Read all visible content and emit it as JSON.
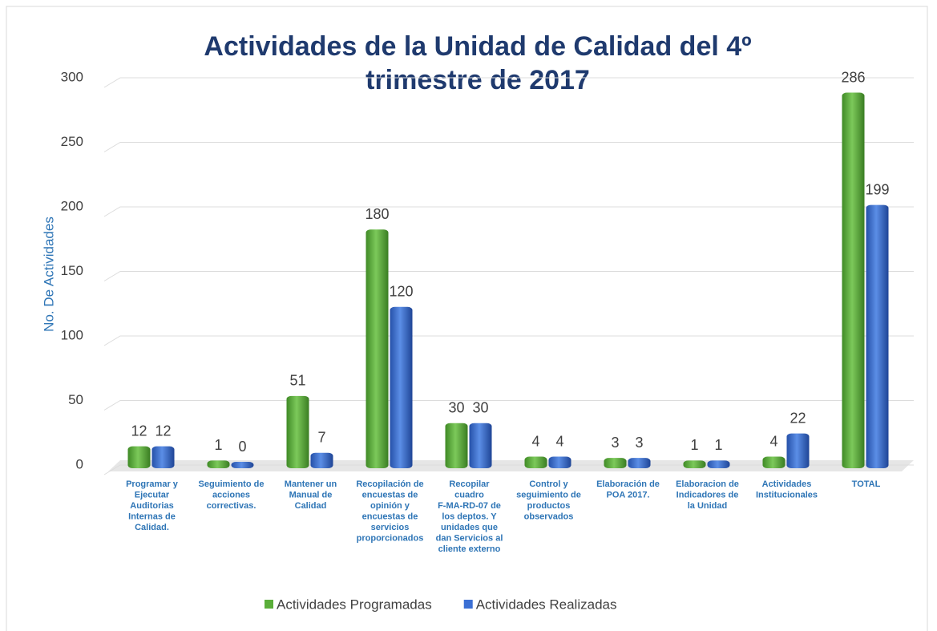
{
  "chart_data": {
    "type": "bar",
    "title": "Actividades de la Unidad de Calidad del 4º trimestre de 2017",
    "y_label": "No. De Actividades",
    "categories": [
      "Programar y Ejecutar Auditorias Internas de Calidad.",
      "Seguimiento de acciones correctivas.",
      "Mantener un Manual de Calidad",
      "Recopilación de encuestas de opinión y encuestas de servicios proporcionados",
      "Recopilar cuadro F-MA-RD-07 de los deptos. Y unidades que dan Servicios al cliente externo",
      "Control y seguimiento de productos observados",
      "Elaboración de POA 2017.",
      "Elaboracion de Indicadores de la Unidad",
      "Actividades Institucionales",
      "TOTAL"
    ],
    "series": [
      {
        "name": "Actividades Programadas",
        "color": "#5aae3a",
        "values": [
          12,
          1,
          51,
          180,
          30,
          4,
          3,
          1,
          4,
          286
        ]
      },
      {
        "name": "Actividades Realizadas",
        "color": "#3b6fd4",
        "values": [
          12,
          0,
          7,
          120,
          30,
          4,
          3,
          1,
          22,
          199
        ]
      }
    ],
    "ylim": [
      0,
      300
    ],
    "yticks": [
      0,
      50,
      100,
      150,
      200,
      250,
      300
    ],
    "grid": true,
    "legend": "bottom"
  }
}
